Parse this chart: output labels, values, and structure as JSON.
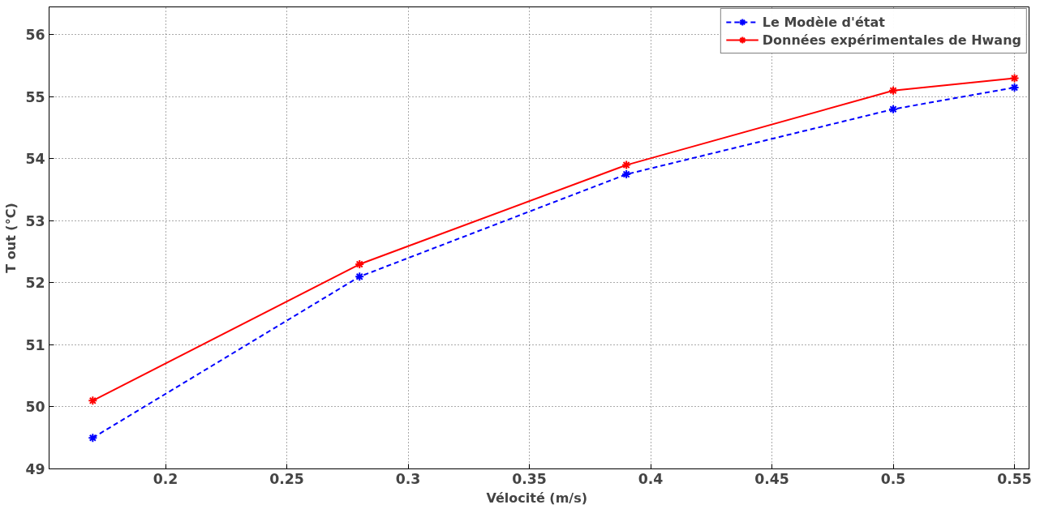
{
  "chart_data": {
    "type": "line",
    "xlabel": "Vélocité  (m/s)",
    "ylabel": "T out (°C)",
    "x": [
      0.17,
      0.28,
      0.39,
      0.5,
      0.55
    ],
    "series": [
      {
        "name": "Le Modèle d'état",
        "color": "#0000ff",
        "line_style": "dashed",
        "values": [
          49.5,
          52.1,
          53.75,
          54.8,
          55.15
        ]
      },
      {
        "name": "Données expérimentales de Hwang",
        "color": "#ff0000",
        "line_style": "solid",
        "values": [
          50.1,
          52.3,
          53.9,
          55.1,
          55.3
        ]
      }
    ],
    "marker": "cross",
    "xlim": [
      0.152,
      0.556
    ],
    "ylim": [
      49,
      56.45
    ],
    "xticks": [
      0.2,
      0.25,
      0.3,
      0.35,
      0.4,
      0.45,
      0.5,
      0.55
    ],
    "yticks": [
      49,
      50,
      51,
      52,
      53,
      54,
      55,
      56
    ],
    "grid": true,
    "legend": "top right"
  }
}
